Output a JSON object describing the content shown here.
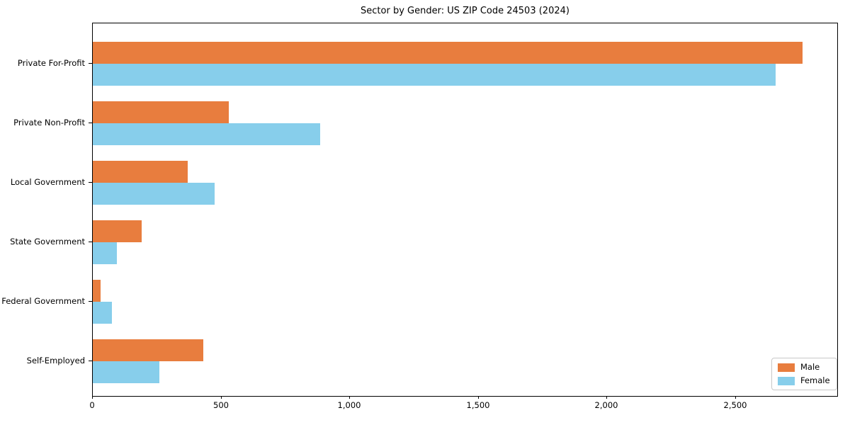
{
  "chart_data": {
    "type": "bar",
    "orientation": "horizontal",
    "title": "Sector by Gender: US ZIP Code 24503 (2024)",
    "categories": [
      "Private For-Profit",
      "Private Non-Profit",
      "Local Government",
      "State Government",
      "Federal Government",
      "Self-Employed"
    ],
    "series": [
      {
        "name": "Male",
        "color": "#e87d3e",
        "values": [
          2760,
          530,
          370,
          190,
          30,
          430
        ]
      },
      {
        "name": "Female",
        "color": "#87ceeb",
        "values": [
          2655,
          885,
          475,
          95,
          75,
          260
        ]
      }
    ],
    "xlabel": "",
    "ylabel": "",
    "xlim": [
      0,
      2900
    ],
    "x_ticks": {
      "values": [
        0,
        500,
        1000,
        1500,
        2000,
        2500
      ],
      "labels": [
        "0",
        "500",
        "1,000",
        "1,500",
        "2,000",
        "2,500"
      ]
    },
    "legend": {
      "position": "lower right",
      "entries": [
        "Male",
        "Female"
      ]
    },
    "grid": false,
    "background": "#ffffff",
    "frame_color": "#000000"
  }
}
